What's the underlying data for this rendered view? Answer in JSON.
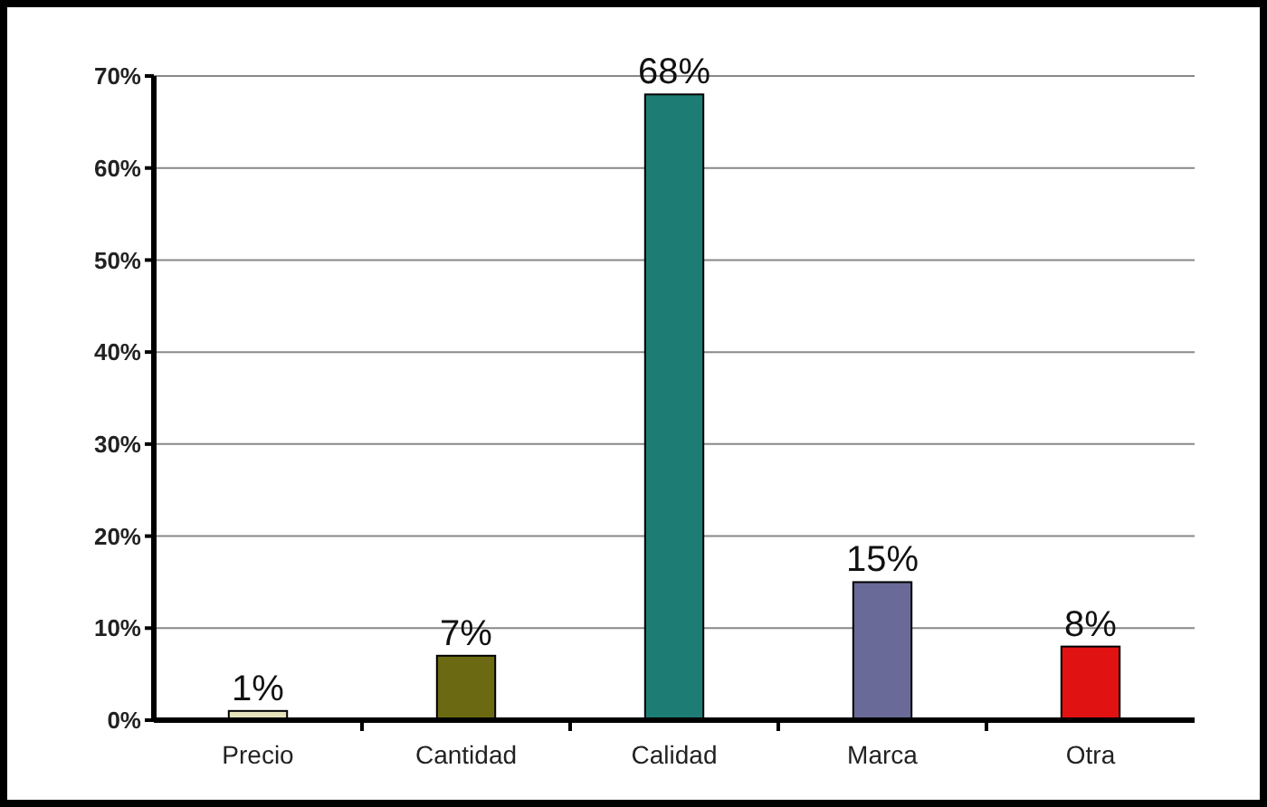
{
  "chart_data": {
    "type": "bar",
    "categories": [
      "Precio",
      "Cantidad",
      "Calidad",
      "Marca",
      "Otra"
    ],
    "values": [
      1,
      7,
      68,
      15,
      8
    ],
    "colors": [
      "#e6e2bc",
      "#6b6a12",
      "#1d7d74",
      "#6a6a98",
      "#e01212"
    ],
    "value_labels": [
      "1%",
      "7%",
      "68%",
      "15%",
      "8%"
    ],
    "ylim": [
      0,
      70
    ],
    "yticks": [
      {
        "value": 0,
        "label": "0%"
      },
      {
        "value": 10,
        "label": "10%"
      },
      {
        "value": 20,
        "label": "20%"
      },
      {
        "value": 30,
        "label": "30%"
      },
      {
        "value": 40,
        "label": "40%"
      },
      {
        "value": 50,
        "label": "50%"
      },
      {
        "value": 60,
        "label": "60%"
      },
      {
        "value": 70,
        "label": "70%"
      }
    ],
    "grid": "y"
  }
}
